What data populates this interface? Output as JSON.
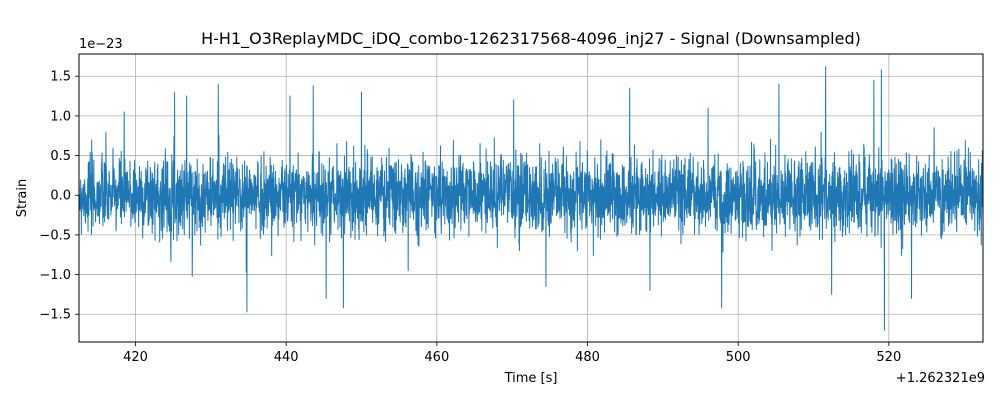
{
  "chart_data": {
    "type": "line",
    "title": "H-H1_O3ReplayMDC_iDQ_combo-1262317568-4096_inj27 - Signal (Downsampled)",
    "xlabel": "Time [s]",
    "ylabel": "Strain",
    "x_offset_label": "+1.262321e9",
    "y_scale_label": "1e−23",
    "xlim": [
      412.5,
      532.5
    ],
    "ylim": [
      -1.85,
      1.78
    ],
    "x_range": [
      412.5,
      532.5
    ],
    "xticks": [
      420,
      440,
      460,
      480,
      500,
      520
    ],
    "xtick_labels": [
      "420",
      "440",
      "460",
      "480",
      "500",
      "520"
    ],
    "yticks": [
      -1.5,
      -1.0,
      -0.5,
      0.0,
      0.5,
      1.0,
      1.5
    ],
    "ytick_labels": [
      "−1.5",
      "−1.0",
      "−0.5",
      "0.0",
      "0.5",
      "1.0",
      "1.5"
    ],
    "grid": true,
    "series": [
      {
        "color": "#1f77b4",
        "x_start": 412.5,
        "x_end": 532.5,
        "typical_envelope": 0.55,
        "peaks": [
          {
            "x": 418.5,
            "y": 1.05
          },
          {
            "x": 425.2,
            "y": 1.3
          },
          {
            "x": 426.8,
            "y": 1.25
          },
          {
            "x": 431.0,
            "y": 1.4
          },
          {
            "x": 434.8,
            "y": -1.47
          },
          {
            "x": 440.5,
            "y": 1.25
          },
          {
            "x": 443.6,
            "y": 1.38
          },
          {
            "x": 445.3,
            "y": -1.3
          },
          {
            "x": 450.0,
            "y": 1.3
          },
          {
            "x": 447.6,
            "y": -1.42
          },
          {
            "x": 456.2,
            "y": -0.95
          },
          {
            "x": 470.2,
            "y": 1.2
          },
          {
            "x": 474.5,
            "y": -1.15
          },
          {
            "x": 485.6,
            "y": 1.35
          },
          {
            "x": 488.3,
            "y": -1.2
          },
          {
            "x": 496.0,
            "y": 1.1
          },
          {
            "x": 497.8,
            "y": -1.42
          },
          {
            "x": 505.4,
            "y": 1.4
          },
          {
            "x": 511.6,
            "y": 1.62
          },
          {
            "x": 512.4,
            "y": -1.25
          },
          {
            "x": 518.0,
            "y": 1.45
          },
          {
            "x": 519.0,
            "y": 1.58
          },
          {
            "x": 519.4,
            "y": -1.7
          },
          {
            "x": 523.0,
            "y": -1.3
          },
          {
            "x": 526.0,
            "y": 0.85
          }
        ]
      }
    ]
  }
}
